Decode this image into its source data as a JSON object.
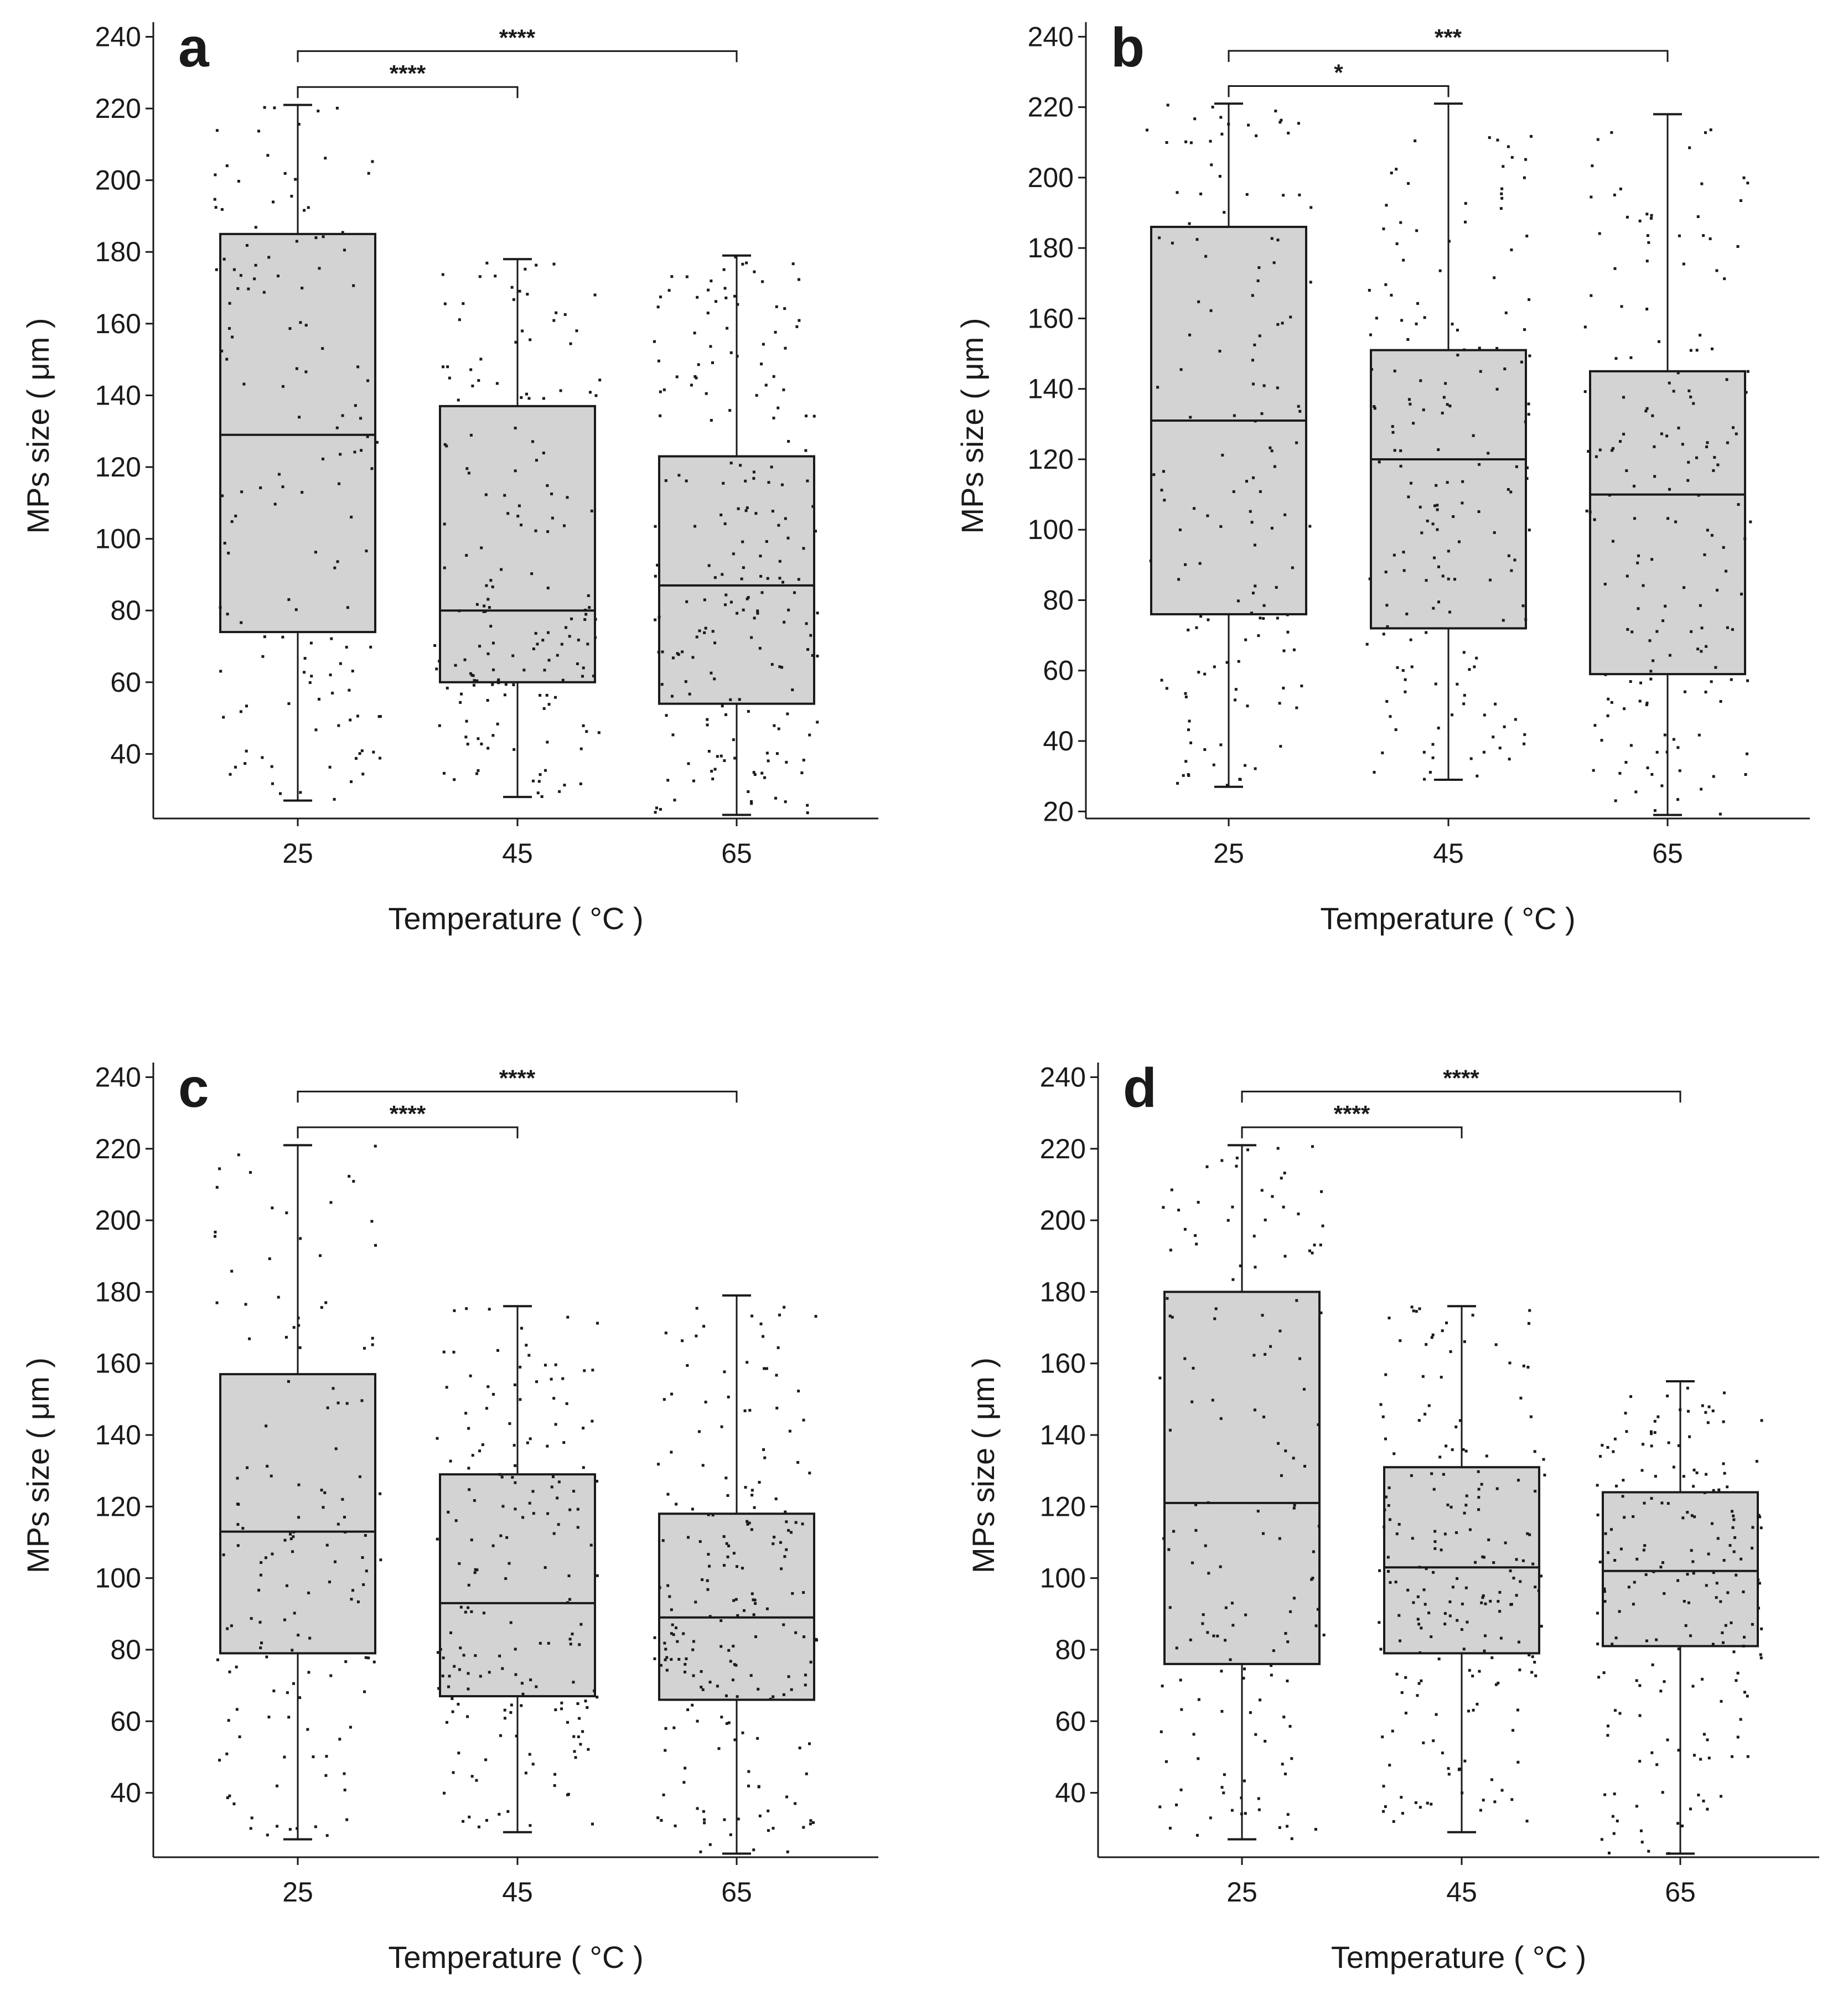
{
  "figure": {
    "style": {
      "box_fill": "#d3d3d3",
      "box_stroke": "#1a1a1a",
      "point_color": "#1a1a1a",
      "axis_color": "#1a1a1a"
    }
  },
  "chart_data": [
    {
      "panel": "a",
      "type": "boxplot",
      "xlabel": "Temperature ( °C )",
      "ylabel": "MPs size ( μm )",
      "categories": [
        "25",
        "45",
        "65"
      ],
      "ylim": [
        22,
        241
      ],
      "yticks": [
        40,
        60,
        80,
        100,
        120,
        140,
        160,
        180,
        200,
        220,
        240
      ],
      "boxes": [
        {
          "category": "25",
          "whisker_low": 27,
          "q1": 74,
          "median": 129,
          "q3": 185,
          "whisker_high": 221,
          "point_count": 140,
          "point_min": 26,
          "point_max": 221
        },
        {
          "category": "45",
          "whisker_low": 28,
          "q1": 60,
          "median": 80,
          "q3": 137,
          "whisker_high": 178,
          "point_count": 170,
          "point_min": 28,
          "point_max": 178
        },
        {
          "category": "65",
          "whisker_low": 23,
          "q1": 54,
          "median": 87,
          "q3": 123,
          "whisker_high": 179,
          "point_count": 200,
          "point_min": 23,
          "point_max": 179
        }
      ],
      "significance": [
        {
          "from": "25",
          "to": "45",
          "label": "****",
          "y": 226
        },
        {
          "from": "25",
          "to": "65",
          "label": "****",
          "y": 236
        }
      ]
    },
    {
      "panel": "b",
      "type": "boxplot",
      "xlabel": "Temperature ( °C )",
      "ylabel": "MPs size ( μm )",
      "categories": [
        "25",
        "45",
        "65"
      ],
      "ylim": [
        18,
        241
      ],
      "yticks": [
        20,
        40,
        60,
        80,
        100,
        120,
        140,
        160,
        180,
        200,
        220,
        240
      ],
      "boxes": [
        {
          "category": "25",
          "whisker_low": 27,
          "q1": 76,
          "median": 131,
          "q3": 186,
          "whisker_high": 221,
          "point_count": 140,
          "point_min": 27,
          "point_max": 221
        },
        {
          "category": "45",
          "whisker_low": 29,
          "q1": 72,
          "median": 120,
          "q3": 151,
          "whisker_high": 221,
          "point_count": 170,
          "point_min": 29,
          "point_max": 221
        },
        {
          "category": "65",
          "whisker_low": 19,
          "q1": 59,
          "median": 110,
          "q3": 145,
          "whisker_high": 218,
          "point_count": 170,
          "point_min": 19,
          "point_max": 218
        }
      ],
      "significance": [
        {
          "from": "25",
          "to": "45",
          "label": "*",
          "y": 226
        },
        {
          "from": "25",
          "to": "65",
          "label": "***",
          "y": 236
        }
      ]
    },
    {
      "panel": "c",
      "type": "boxplot",
      "xlabel": "Temperature ( °C )",
      "ylabel": "MPs size ( μm )",
      "categories": [
        "25",
        "45",
        "65"
      ],
      "ylim": [
        22,
        241
      ],
      "yticks": [
        40,
        60,
        80,
        100,
        120,
        140,
        160,
        180,
        200,
        220,
        240
      ],
      "boxes": [
        {
          "category": "25",
          "whisker_low": 27,
          "q1": 79,
          "median": 113,
          "q3": 157,
          "whisker_high": 221,
          "point_count": 140,
          "point_min": 27,
          "point_max": 221
        },
        {
          "category": "45",
          "whisker_low": 29,
          "q1": 67,
          "median": 93,
          "q3": 129,
          "whisker_high": 176,
          "point_count": 180,
          "point_min": 29,
          "point_max": 176
        },
        {
          "category": "65",
          "whisker_low": 23,
          "q1": 66,
          "median": 89,
          "q3": 118,
          "whisker_high": 179,
          "point_count": 200,
          "point_min": 23,
          "point_max": 179
        }
      ],
      "significance": [
        {
          "from": "25",
          "to": "45",
          "label": "****",
          "y": 226
        },
        {
          "from": "25",
          "to": "65",
          "label": "****",
          "y": 236
        }
      ]
    },
    {
      "panel": "d",
      "type": "boxplot",
      "xlabel": "Temperature ( °C )",
      "ylabel": "MPs size ( μm )",
      "categories": [
        "25",
        "45",
        "65"
      ],
      "ylim": [
        22,
        241
      ],
      "yticks": [
        40,
        60,
        80,
        100,
        120,
        140,
        160,
        180,
        200,
        220,
        240
      ],
      "boxes": [
        {
          "category": "25",
          "whisker_low": 27,
          "q1": 76,
          "median": 121,
          "q3": 180,
          "whisker_high": 221,
          "point_count": 150,
          "point_min": 27,
          "point_max": 221
        },
        {
          "category": "45",
          "whisker_low": 29,
          "q1": 79,
          "median": 103,
          "q3": 131,
          "whisker_high": 176,
          "point_count": 200,
          "point_min": 29,
          "point_max": 176
        },
        {
          "category": "65",
          "whisker_low": 23,
          "q1": 81,
          "median": 102,
          "q3": 124,
          "whisker_high": 155,
          "point_count": 190,
          "point_min": 23,
          "point_max": 155
        }
      ],
      "significance": [
        {
          "from": "25",
          "to": "45",
          "label": "****",
          "y": 226
        },
        {
          "from": "25",
          "to": "65",
          "label": "****",
          "y": 236
        }
      ]
    }
  ]
}
